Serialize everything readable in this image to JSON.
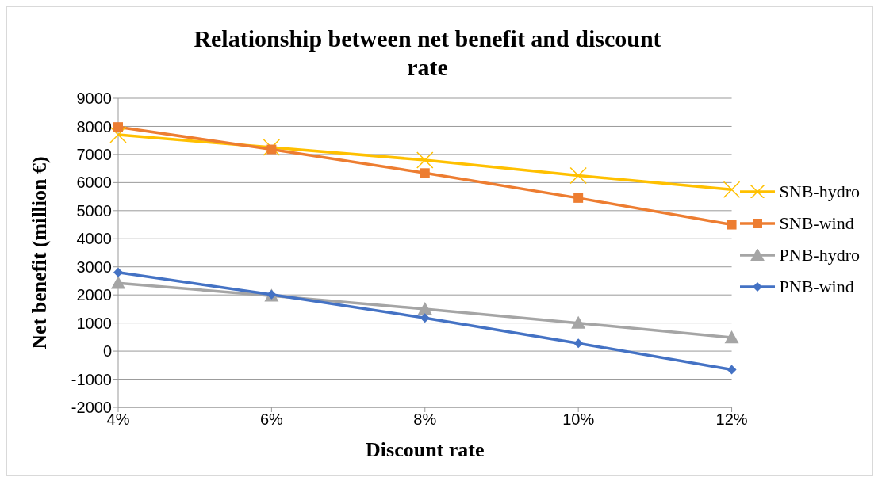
{
  "chart_data": {
    "type": "line",
    "title": "Relationship between net benefit and discount rate",
    "xlabel": "Discount rate",
    "ylabel": "Net benefit (million €)",
    "categories": [
      "4%",
      "6%",
      "8%",
      "10%",
      "12%"
    ],
    "series": [
      {
        "name": "SNB-hydro",
        "color": "#ffc000",
        "marker": "cross",
        "values": [
          7700,
          7250,
          6800,
          6250,
          5750
        ]
      },
      {
        "name": "SNB-wind",
        "color": "#ed7d31",
        "marker": "square",
        "values": [
          7980,
          7180,
          6340,
          5450,
          4500
        ]
      },
      {
        "name": "PNB-hydro",
        "color": "#a5a5a5",
        "marker": "triangle",
        "values": [
          2420,
          1970,
          1500,
          1000,
          480
        ]
      },
      {
        "name": "PNB-wind",
        "color": "#4472c4",
        "marker": "diamond",
        "values": [
          2800,
          2010,
          1180,
          280,
          -660
        ]
      }
    ],
    "ylim": [
      -2000,
      9000
    ],
    "yticks": [
      -2000,
      -1000,
      0,
      1000,
      2000,
      3000,
      4000,
      5000,
      6000,
      7000,
      8000,
      9000
    ],
    "grid": "y",
    "legend": "right"
  }
}
